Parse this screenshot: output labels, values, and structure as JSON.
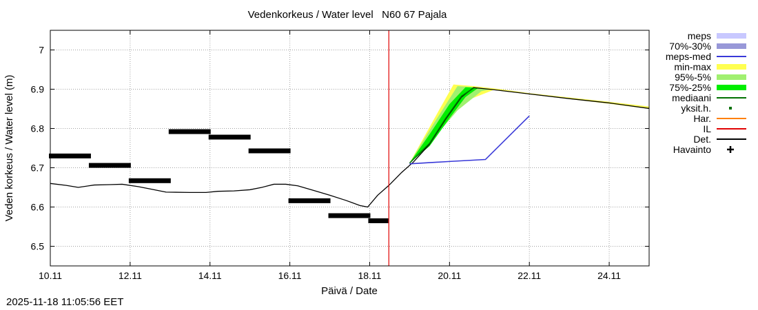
{
  "chart_data": {
    "type": "line",
    "title": "Vedenkorkeus / Water level   N60 67 Pajala",
    "xlabel": "Päivä / Date",
    "ylabel": "Veden korkeus / Water level (m)",
    "xlim_days": [
      10.0,
      25.0
    ],
    "ylim": [
      6.45,
      7.05
    ],
    "x_ticks": [
      {
        "day": 10,
        "label": "10.11"
      },
      {
        "day": 12,
        "label": "12.11"
      },
      {
        "day": 14,
        "label": "14.11"
      },
      {
        "day": 16,
        "label": "16.11"
      },
      {
        "day": 18,
        "label": "18.11"
      },
      {
        "day": 20,
        "label": "20.11"
      },
      {
        "day": 22,
        "label": "22.11"
      },
      {
        "day": 24,
        "label": "24.11"
      }
    ],
    "y_ticks": [
      {
        "value": 6.5,
        "label": "6.5"
      },
      {
        "value": 6.6,
        "label": "6.6"
      },
      {
        "value": 6.7,
        "label": "6.7"
      },
      {
        "value": 6.8,
        "label": "6.8"
      },
      {
        "value": 6.9,
        "label": "6.9"
      },
      {
        "value": 7.0,
        "label": "7"
      }
    ],
    "grid": true,
    "now_day": 18.48,
    "legend_position": "right",
    "legend": [
      {
        "key": "meps",
        "label": "meps",
        "color": "#c8c8ff",
        "style": "band"
      },
      {
        "key": "p70_30",
        "label": "70%-30%",
        "color": "#9898d8",
        "style": "band"
      },
      {
        "key": "meps_med",
        "label": "meps-med",
        "color": "#3838d8",
        "style": "line"
      },
      {
        "key": "minmax",
        "label": "min-max",
        "color": "#ffff50",
        "style": "band"
      },
      {
        "key": "p95_5",
        "label": "95%-5%",
        "color": "#a0f070",
        "style": "band"
      },
      {
        "key": "p75_25",
        "label": "75%-25%",
        "color": "#00ee00",
        "style": "band"
      },
      {
        "key": "mediaani",
        "label": "mediaani",
        "color": "#007000",
        "style": "line"
      },
      {
        "key": "yksit",
        "label": "yksit.h.",
        "color": "#007000",
        "style": "dot"
      },
      {
        "key": "har",
        "label": "Har.",
        "color": "#ff8000",
        "style": "line"
      },
      {
        "key": "il",
        "label": "IL",
        "color": "#e00000",
        "style": "line"
      },
      {
        "key": "det",
        "label": "Det.",
        "color": "#000000",
        "style": "line"
      },
      {
        "key": "havainto",
        "label": "Havainto",
        "color": "#000000",
        "style": "cross"
      }
    ],
    "series": [
      {
        "name": "Det.",
        "color": "#000000",
        "points": [
          [
            10.0,
            6.66
          ],
          [
            10.4,
            6.655
          ],
          [
            10.7,
            6.65
          ],
          [
            11.1,
            6.656
          ],
          [
            11.5,
            6.657
          ],
          [
            11.8,
            6.658
          ],
          [
            12.2,
            6.652
          ],
          [
            12.5,
            6.646
          ],
          [
            12.9,
            6.638
          ],
          [
            13.5,
            6.637
          ],
          [
            13.9,
            6.637
          ],
          [
            14.2,
            6.64
          ],
          [
            14.6,
            6.641
          ],
          [
            15.0,
            6.644
          ],
          [
            15.3,
            6.65
          ],
          [
            15.6,
            6.658
          ],
          [
            15.9,
            6.658
          ],
          [
            16.2,
            6.654
          ],
          [
            16.6,
            6.642
          ],
          [
            17.0,
            6.63
          ],
          [
            17.4,
            6.617
          ],
          [
            17.75,
            6.604
          ],
          [
            17.95,
            6.6
          ],
          [
            18.2,
            6.63
          ],
          [
            18.48,
            6.655
          ],
          [
            18.8,
            6.688
          ],
          [
            19.1,
            6.715
          ],
          [
            19.5,
            6.76
          ],
          [
            19.9,
            6.823
          ],
          [
            20.3,
            6.88
          ],
          [
            20.6,
            6.904
          ],
          [
            21.0,
            6.9
          ],
          [
            22.0,
            6.888
          ],
          [
            23.0,
            6.876
          ],
          [
            24.0,
            6.865
          ],
          [
            25.0,
            6.851
          ]
        ]
      },
      {
        "name": "mediaani",
        "color": "#007000",
        "points": [
          [
            19.0,
            6.712
          ],
          [
            19.5,
            6.762
          ],
          [
            19.9,
            6.825
          ],
          [
            20.3,
            6.882
          ],
          [
            20.6,
            6.903
          ]
        ]
      },
      {
        "name": "meps-med",
        "color": "#3838d8",
        "points": [
          [
            19.0,
            6.71
          ],
          [
            19.5,
            6.713
          ],
          [
            20.0,
            6.716
          ],
          [
            20.9,
            6.721
          ],
          [
            22.0,
            6.832
          ]
        ]
      }
    ],
    "bands": [
      {
        "name": "min-max",
        "color": "#ffff50",
        "upper": [
          [
            19.0,
            6.712
          ],
          [
            19.7,
            6.84
          ],
          [
            20.1,
            6.912
          ],
          [
            20.6,
            6.908
          ],
          [
            21.2,
            6.901
          ],
          [
            22.0,
            6.89
          ],
          [
            23.0,
            6.879
          ],
          [
            24.0,
            6.868
          ],
          [
            25.0,
            6.856
          ]
        ],
        "lower": [
          [
            19.0,
            6.712
          ],
          [
            19.7,
            6.8
          ],
          [
            20.4,
            6.87
          ],
          [
            21.1,
            6.898
          ],
          [
            22.0,
            6.887
          ],
          [
            23.0,
            6.875
          ],
          [
            24.0,
            6.863
          ],
          [
            25.0,
            6.85
          ]
        ]
      },
      {
        "name": "95%-5%",
        "color": "#a0f070",
        "upper": [
          [
            19.0,
            6.712
          ],
          [
            19.6,
            6.812
          ],
          [
            20.2,
            6.908
          ],
          [
            20.6,
            6.905
          ],
          [
            21.0,
            6.9
          ]
        ],
        "lower": [
          [
            19.0,
            6.712
          ],
          [
            19.6,
            6.775
          ],
          [
            20.2,
            6.846
          ],
          [
            20.8,
            6.895
          ],
          [
            21.0,
            6.899
          ]
        ]
      },
      {
        "name": "75%-25%",
        "color": "#00ee00",
        "upper": [
          [
            19.0,
            6.712
          ],
          [
            19.5,
            6.785
          ],
          [
            20.0,
            6.862
          ],
          [
            20.4,
            6.905
          ],
          [
            20.7,
            6.904
          ]
        ],
        "lower": [
          [
            19.0,
            6.712
          ],
          [
            19.5,
            6.755
          ],
          [
            20.0,
            6.826
          ],
          [
            20.4,
            6.88
          ],
          [
            20.7,
            6.902
          ]
        ]
      }
    ],
    "observations": [
      {
        "start": 10.0,
        "end": 11.0,
        "value": 6.73
      },
      {
        "start": 11.0,
        "end": 12.0,
        "value": 6.706
      },
      {
        "start": 12.0,
        "end": 13.0,
        "value": 6.667
      },
      {
        "start": 13.0,
        "end": 14.0,
        "value": 6.792
      },
      {
        "start": 14.0,
        "end": 15.0,
        "value": 6.778
      },
      {
        "start": 15.0,
        "end": 16.0,
        "value": 6.743
      },
      {
        "start": 16.0,
        "end": 17.0,
        "value": 6.616
      },
      {
        "start": 17.0,
        "end": 18.0,
        "value": 6.578
      },
      {
        "start": 18.0,
        "end": 18.45,
        "value": 6.565
      }
    ]
  },
  "timestamp": "2025-11-18 11:05:56 EET"
}
